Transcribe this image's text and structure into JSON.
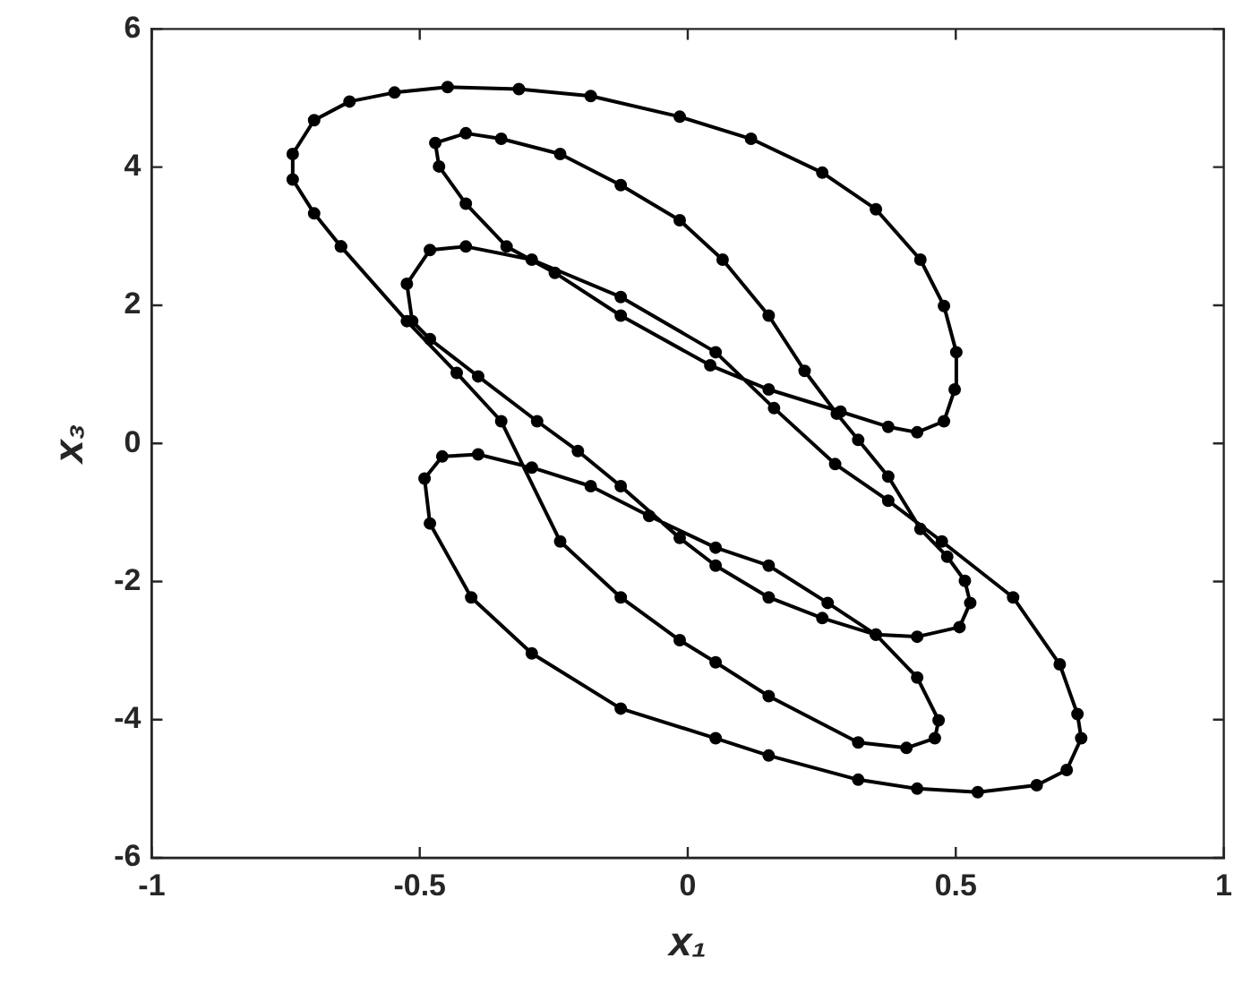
{
  "chart_data": {
    "type": "scatter",
    "line_style": "solid",
    "marker": "circle",
    "xlabel": "x₁",
    "ylabel": "x₃",
    "xlim": [
      -1,
      1
    ],
    "ylim": [
      -6,
      6
    ],
    "xticks": [
      -1,
      -0.5,
      0,
      0.5,
      1
    ],
    "yticks": [
      -6,
      -4,
      -2,
      0,
      2,
      4,
      6
    ],
    "grid": false,
    "legend": false,
    "x": [
      -0.647,
      -0.524,
      -0.431,
      -0.348,
      -0.238,
      -0.125,
      -0.015,
      0.052,
      0.151,
      0.318,
      0.408,
      0.461,
      0.468,
      0.428,
      0.351,
      0.261,
      0.151,
      0.052,
      -0.072,
      -0.181,
      -0.291,
      -0.391,
      -0.458,
      -0.491,
      -0.481,
      -0.404,
      -0.291,
      -0.125,
      0.052,
      0.151,
      0.318,
      0.428,
      0.541,
      0.651,
      0.707,
      0.734,
      0.727,
      0.694,
      0.607,
      0.474,
      0.374,
      0.275,
      0.161,
      0.052,
      -0.125,
      -0.291,
      -0.414,
      -0.481,
      -0.524,
      -0.514,
      -0.481,
      -0.391,
      -0.281,
      -0.205,
      -0.125,
      -0.015,
      0.052,
      0.151,
      0.251,
      0.351,
      0.428,
      0.507,
      0.527,
      0.517,
      0.484,
      0.434,
      0.374,
      0.318,
      0.278,
      0.218,
      0.151,
      0.065,
      -0.015,
      -0.125,
      -0.238,
      -0.348,
      -0.414,
      -0.471,
      -0.464,
      -0.414,
      -0.338,
      -0.248,
      -0.125,
      0.042,
      0.151,
      0.285,
      0.374,
      0.428,
      0.478,
      0.498,
      0.501,
      0.478,
      0.434,
      0.351,
      0.251,
      0.118,
      -0.015,
      -0.181,
      -0.315,
      -0.448,
      -0.547,
      -0.631,
      -0.697,
      -0.737,
      -0.737,
      -0.697,
      -0.647
    ],
    "series": [
      {
        "color": "#000000",
        "values": [
          2.85,
          1.77,
          1.02,
          0.32,
          -1.42,
          -2.23,
          -2.85,
          -3.17,
          -3.66,
          -4.33,
          -4.41,
          -4.27,
          -4.01,
          -3.39,
          -2.77,
          -2.31,
          -1.77,
          -1.51,
          -1.05,
          -0.62,
          -0.35,
          -0.16,
          -0.19,
          -0.51,
          -1.16,
          -2.23,
          -3.04,
          -3.84,
          -4.27,
          -4.52,
          -4.87,
          -5.0,
          -5.05,
          -4.95,
          -4.73,
          -4.27,
          -3.92,
          -3.2,
          -2.23,
          -1.42,
          -0.83,
          -0.3,
          0.51,
          1.32,
          2.12,
          2.66,
          2.85,
          2.8,
          2.31,
          1.77,
          1.51,
          0.97,
          0.32,
          -0.11,
          -0.62,
          -1.37,
          -1.77,
          -2.23,
          -2.53,
          -2.77,
          -2.8,
          -2.66,
          -2.31,
          -1.99,
          -1.64,
          -1.24,
          -0.48,
          0.05,
          0.43,
          1.05,
          1.85,
          2.66,
          3.23,
          3.74,
          4.19,
          4.41,
          4.49,
          4.35,
          4.01,
          3.47,
          2.85,
          2.47,
          1.85,
          1.13,
          0.78,
          0.46,
          0.24,
          0.16,
          0.32,
          0.78,
          1.32,
          1.99,
          2.66,
          3.39,
          3.92,
          4.41,
          4.73,
          5.03,
          5.13,
          5.16,
          5.08,
          4.95,
          4.68,
          4.19,
          3.82,
          3.33,
          2.85
        ]
      }
    ]
  }
}
